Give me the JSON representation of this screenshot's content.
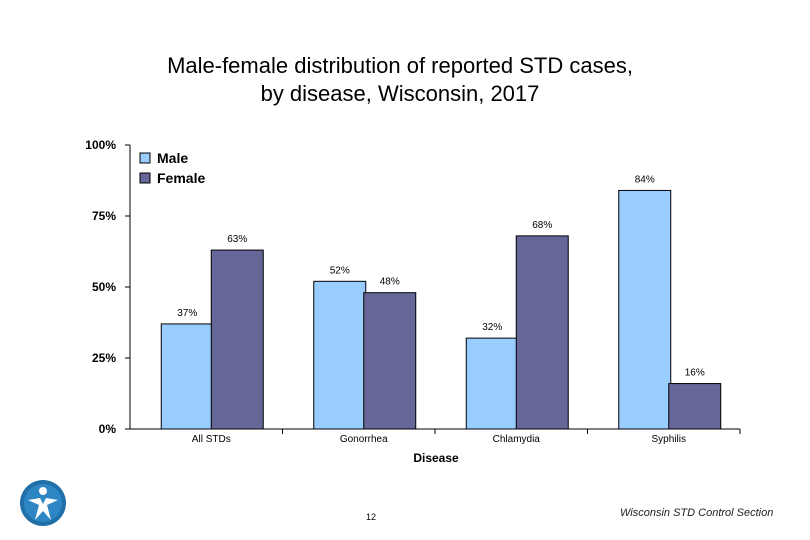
{
  "chart_data": {
    "type": "bar",
    "title_line1": "Male-female distribution of reported STD cases,",
    "title_line2": "by disease, Wisconsin, 2017",
    "xlabel": "Disease",
    "ylabel": "",
    "ylim": [
      0,
      100
    ],
    "yticks": [
      "0%",
      "25%",
      "50%",
      "75%",
      "100%"
    ],
    "categories": [
      "All STDs",
      "Gonorrhea",
      "Chlamydia",
      "Syphilis"
    ],
    "series": [
      {
        "name": "Male",
        "color": "#99ccff",
        "values": [
          37,
          52,
          32,
          84
        ],
        "labels": [
          "37%",
          "52%",
          "32%",
          "84%"
        ]
      },
      {
        "name": "Female",
        "color": "#666699",
        "values": [
          63,
          48,
          68,
          16
        ],
        "labels": [
          "63%",
          "48%",
          "68%",
          "16%"
        ]
      }
    ],
    "legend_position": "top-left"
  },
  "footer": {
    "page_number": "12",
    "source": "Wisconsin STD Control Section"
  }
}
